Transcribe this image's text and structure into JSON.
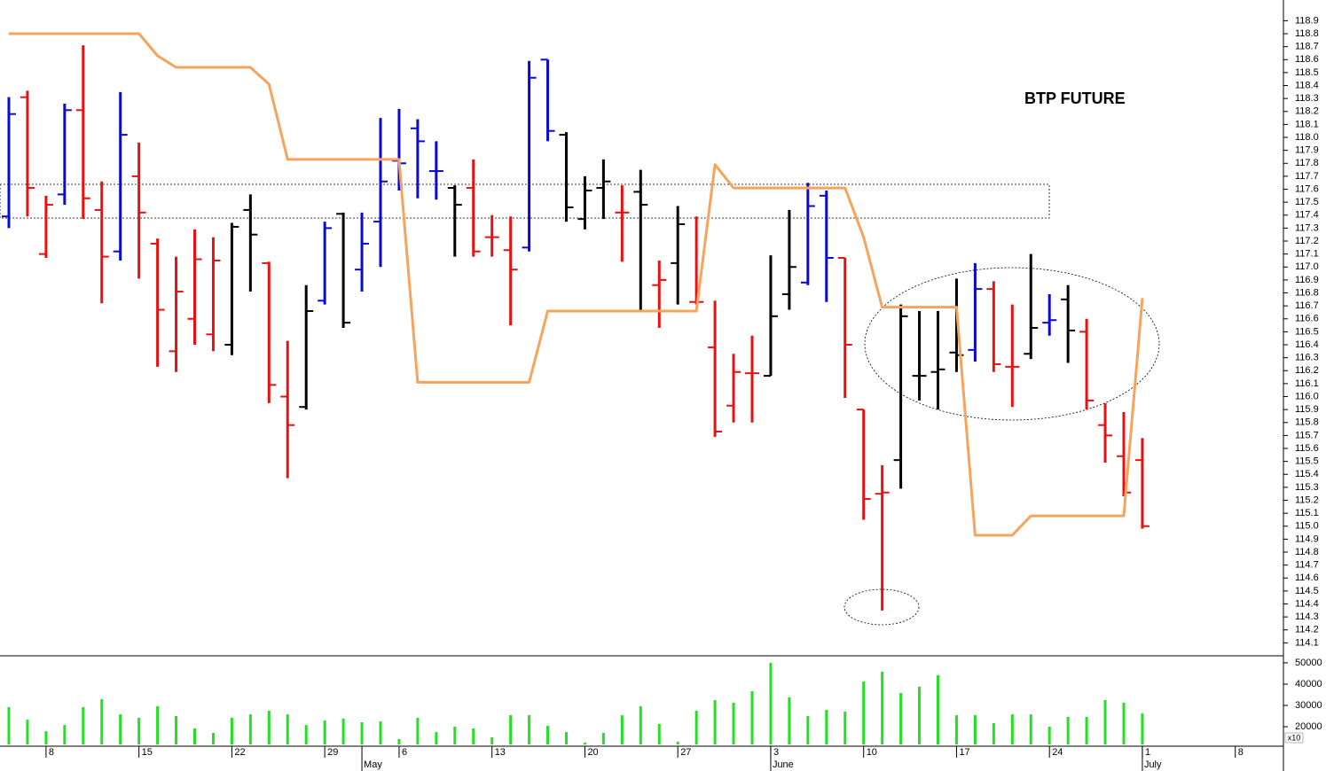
{
  "chart_data": {
    "type": "ohlc",
    "title": "BTP FUTURE",
    "categories": [
      null,
      null,
      "8",
      null,
      null,
      null,
      null,
      "15",
      null,
      null,
      null,
      null,
      "22",
      null,
      null,
      null,
      null,
      "29",
      null,
      null,
      null,
      "6",
      null,
      null,
      null,
      null,
      "13",
      null,
      null,
      null,
      null,
      "20",
      null,
      null,
      null,
      null,
      "27",
      null,
      null,
      null,
      null,
      "3",
      null,
      null,
      null,
      null,
      "10",
      null,
      null,
      null,
      null,
      "17",
      null,
      null,
      null,
      null,
      "24",
      null,
      null,
      null,
      null,
      "1",
      null,
      null,
      null,
      null,
      "8",
      null
    ],
    "month_labels": [
      null,
      null,
      null,
      null,
      null,
      null,
      null,
      null,
      null,
      null,
      null,
      null,
      null,
      null,
      null,
      null,
      null,
      null,
      null,
      "May",
      null,
      null,
      null,
      null,
      null,
      null,
      null,
      null,
      null,
      null,
      null,
      null,
      null,
      null,
      null,
      null,
      null,
      null,
      null,
      null,
      null,
      "June",
      null,
      null,
      null,
      null,
      null,
      null,
      null,
      null,
      null,
      null,
      null,
      null,
      null,
      null,
      null,
      null,
      null,
      null,
      null,
      "July",
      null,
      null,
      null,
      null,
      null,
      null
    ],
    "open": [
      117.39,
      118.31,
      117.1,
      117.56,
      118.21,
      117.44,
      117.12,
      117.7,
      117.18,
      116.35,
      116.6,
      116.48,
      116.4,
      117.44,
      117.03,
      116.0,
      115.92,
      116.74,
      117.41,
      116.98,
      117.35,
      117.82,
      118.07,
      117.74,
      117.61,
      117.61,
      117.23,
      117.13,
      117.15,
      118.6,
      118.02,
      117.37,
      117.61,
      117.42,
      117.58,
      116.86,
      117.03,
      116.73,
      116.38,
      115.93,
      116.18,
      116.16,
      116.79,
      116.88,
      117.55,
      117.07,
      115.9,
      115.25,
      115.51,
      116.16,
      116.19,
      116.34,
      116.36,
      116.83,
      116.23,
      116.33,
      116.57,
      116.75,
      116.5,
      115.78,
      115.54,
      115.51,
      null,
      null,
      null,
      null,
      null,
      null
    ],
    "high": [
      118.31,
      118.36,
      117.55,
      118.26,
      118.71,
      117.66,
      118.35,
      117.96,
      117.22,
      117.08,
      117.29,
      117.23,
      117.34,
      117.56,
      117.04,
      116.43,
      116.86,
      117.35,
      117.42,
      117.42,
      118.15,
      118.22,
      118.14,
      117.97,
      117.63,
      117.83,
      117.4,
      117.39,
      118.59,
      118.6,
      118.04,
      117.7,
      117.83,
      117.63,
      117.75,
      117.05,
      117.47,
      117.39,
      116.74,
      116.33,
      116.47,
      117.09,
      117.44,
      117.65,
      117.59,
      117.07,
      115.9,
      115.47,
      116.71,
      116.66,
      116.66,
      116.91,
      117.03,
      116.89,
      116.71,
      117.1,
      116.79,
      116.86,
      116.6,
      115.95,
      115.88,
      115.68,
      null,
      null,
      null,
      null,
      null,
      null
    ],
    "low": [
      117.3,
      117.39,
      117.07,
      117.48,
      117.37,
      116.72,
      117.05,
      116.91,
      116.23,
      116.19,
      116.4,
      116.35,
      116.32,
      116.81,
      115.95,
      115.37,
      115.9,
      116.71,
      116.53,
      116.81,
      117.0,
      117.59,
      117.53,
      117.52,
      117.08,
      117.08,
      117.08,
      116.55,
      117.12,
      117.97,
      117.35,
      117.29,
      117.37,
      117.04,
      116.67,
      116.53,
      116.71,
      116.71,
      115.69,
      115.8,
      115.8,
      116.16,
      116.67,
      116.86,
      116.73,
      115.99,
      115.05,
      114.35,
      115.29,
      115.97,
      115.9,
      116.19,
      116.27,
      116.19,
      115.92,
      116.29,
      116.47,
      116.26,
      115.9,
      115.49,
      115.23,
      114.98,
      null,
      null,
      null,
      null,
      null,
      null
    ],
    "close": [
      118.18,
      117.61,
      117.48,
      118.21,
      117.53,
      117.08,
      118.02,
      117.42,
      116.67,
      116.81,
      117.06,
      117.05,
      117.31,
      117.25,
      116.09,
      115.78,
      116.66,
      117.3,
      116.57,
      117.18,
      117.66,
      117.8,
      117.97,
      117.74,
      117.48,
      117.12,
      117.23,
      116.98,
      118.46,
      118.05,
      117.46,
      117.59,
      117.66,
      117.42,
      117.48,
      116.9,
      117.33,
      116.73,
      115.73,
      116.19,
      116.18,
      116.62,
      117.0,
      117.47,
      117.07,
      116.4,
      115.21,
      115.26,
      116.62,
      116.16,
      116.21,
      116.32,
      116.83,
      116.25,
      116.23,
      116.53,
      116.59,
      116.51,
      115.97,
      115.7,
      115.26,
      115.0,
      null,
      null,
      null,
      null,
      null,
      null
    ],
    "bar_colors": [
      "#0a0ad0",
      "#e81010",
      "#e81010",
      "#0a0ad0",
      "#e81010",
      "#e81010",
      "#0a0ad0",
      "#e81010",
      "#e81010",
      "#e81010",
      "#e81010",
      "#e81010",
      "#000000",
      "#000000",
      "#e81010",
      "#e81010",
      "#000000",
      "#0a0ad0",
      "#000000",
      "#0a0ad0",
      "#0a0ad0",
      "#0a0ad0",
      "#0a0ad0",
      "#0a0ad0",
      "#000000",
      "#e81010",
      "#e81010",
      "#e81010",
      "#0a0ad0",
      "#0a0ad0",
      "#000000",
      "#000000",
      "#000000",
      "#e81010",
      "#000000",
      "#e81010",
      "#000000",
      "#e81010",
      "#e81010",
      "#e81010",
      "#e81010",
      "#000000",
      "#000000",
      "#0a0ad0",
      "#0a0ad0",
      "#e81010",
      "#e81010",
      "#e81010",
      "#000000",
      "#000000",
      "#000000",
      "#000000",
      "#0a0ad0",
      "#e81010",
      "#e81010",
      "#000000",
      "#0a0ad0",
      "#000000",
      "#e81010",
      "#e81010",
      "#e81010",
      "#e81010",
      null,
      null,
      null,
      null,
      null,
      null
    ],
    "ylim": [
      114.0,
      119.06
    ],
    "yticks": [
      114.1,
      114.2,
      114.3,
      114.4,
      114.5,
      114.6,
      114.7,
      114.8,
      114.9,
      {
        "value": 115,
        "label": "115.0"
      },
      115.1,
      115.2,
      115.3,
      115.4,
      115.5,
      115.6,
      115.7,
      115.8,
      115.9,
      {
        "value": 116,
        "label": "116.0"
      },
      116.1,
      116.2,
      116.3,
      116.4,
      116.5,
      116.6,
      116.7,
      116.8,
      116.9,
      {
        "value": 117,
        "label": "117.0"
      },
      117.1,
      117.2,
      117.3,
      117.4,
      117.5,
      117.6,
      117.7,
      117.8,
      117.9,
      {
        "value": 118,
        "label": "118.0"
      },
      118.1,
      118.2,
      118.3,
      118.4,
      118.5,
      118.6,
      118.7,
      118.8,
      118.9
    ],
    "line": {
      "color": "#f6a45c",
      "values": [
        118.8,
        118.8,
        118.8,
        118.8,
        118.8,
        118.8,
        118.8,
        118.8,
        118.63,
        118.54,
        118.54,
        118.54,
        118.54,
        118.54,
        118.41,
        117.83,
        117.83,
        117.83,
        117.83,
        117.83,
        117.83,
        117.83,
        116.11,
        116.11,
        116.11,
        116.11,
        116.11,
        116.11,
        116.11,
        116.66,
        116.66,
        116.66,
        116.66,
        116.66,
        116.66,
        116.66,
        116.66,
        116.66,
        117.79,
        117.61,
        117.61,
        117.61,
        117.61,
        117.61,
        117.61,
        117.61,
        117.23,
        116.69,
        116.69,
        116.69,
        116.69,
        116.69,
        114.93,
        114.93,
        114.93,
        115.08,
        115.08,
        115.08,
        115.08,
        115.08,
        115.08,
        116.76,
        null,
        null,
        null,
        null,
        null,
        null
      ]
    },
    "volume": {
      "color": "#22e022",
      "values": [
        29200,
        23300,
        17900,
        20800,
        29200,
        32900,
        25800,
        24200,
        29600,
        25000,
        19200,
        17100,
        24200,
        25800,
        27500,
        25800,
        20800,
        22900,
        23800,
        22100,
        22500,
        14200,
        24200,
        17500,
        20000,
        19200,
        15000,
        25400,
        25400,
        20400,
        17500,
        12500,
        17100,
        25400,
        29600,
        21300,
        12900,
        27500,
        32500,
        31300,
        36700,
        50000,
        33800,
        25000,
        27900,
        27100,
        41300,
        45800,
        35800,
        38800,
        44200,
        25400,
        25400,
        21700,
        25800,
        25800,
        20000,
        24600,
        24600,
        32500,
        31300,
        26300,
        null,
        null,
        null,
        null,
        null,
        null
      ],
      "ylim": [
        11700,
        53300
      ],
      "yticks": [
        20000,
        30000,
        40000,
        50000
      ],
      "note": "x10"
    }
  }
}
